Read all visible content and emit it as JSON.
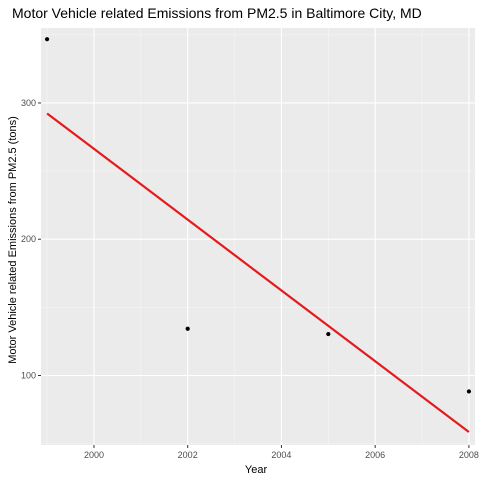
{
  "chart_data": {
    "type": "scatter",
    "title": "Motor Vehicle related Emissions from PM2.5 in Baltimore City, MD",
    "xlabel": "Year",
    "ylabel": "Motor Vehicle related Emissions from PM2.5 (tons)",
    "xlim": [
      1998.87,
      2008.13
    ],
    "ylim": [
      49,
      355
    ],
    "x_ticks": [
      2000,
      2002,
      2004,
      2006,
      2008
    ],
    "y_ticks": [
      100,
      200,
      300
    ],
    "grid": true,
    "legend": "none",
    "series": [
      {
        "points": [
          {
            "x": 1999,
            "y": 346.8
          },
          {
            "x": 2002,
            "y": 134.3
          },
          {
            "x": 2005,
            "y": 130.4
          },
          {
            "x": 2008,
            "y": 88.3
          }
        ]
      }
    ],
    "trendline": {
      "type": "linear",
      "x": [
        1999,
        2008
      ],
      "y": [
        292.3,
        58.5
      ]
    },
    "colors": {
      "panel_bg": "#ebebeb",
      "grid_major": "#ffffff",
      "grid_minor": "#f5f5f5",
      "point": "#000000",
      "trendline": "#e41a1c",
      "tick": "#333333"
    }
  }
}
